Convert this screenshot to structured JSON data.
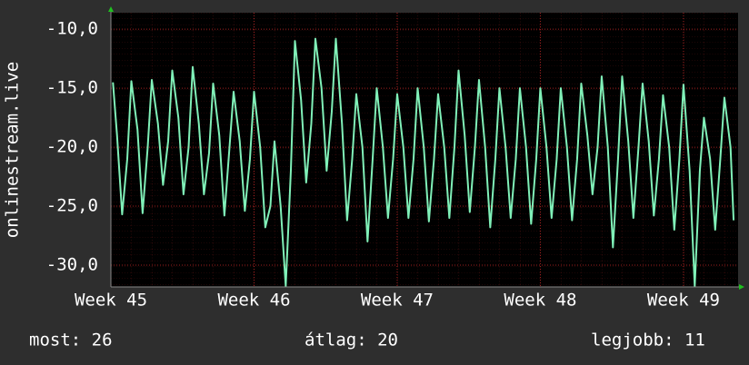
{
  "chart_data": {
    "type": "line",
    "ylabel": "onlinestream.live",
    "x": [
      0.1,
      0.3,
      0.55,
      0.8,
      1,
      1.3,
      1.55,
      1.8,
      2,
      2.3,
      2.55,
      2.8,
      3,
      3.3,
      3.55,
      3.8,
      4,
      4.3,
      4.55,
      4.8,
      5,
      5.3,
      5.55,
      5.8,
      6,
      6.3,
      6.55,
      6.8,
      7,
      7.3,
      7.55,
      7.8,
      8,
      8.3,
      8.55,
      8.8,
      9,
      9.3,
      9.55,
      9.8,
      10,
      10.3,
      10.55,
      10.8,
      11,
      11.3,
      11.55,
      11.8,
      12,
      12.3,
      12.55,
      12.8,
      13,
      13.3,
      13.55,
      13.8,
      14,
      14.3,
      14.55,
      14.8,
      15,
      15.3,
      15.55,
      15.8,
      16,
      16.3,
      16.55,
      16.8,
      17,
      17.3,
      17.55,
      17.8,
      18,
      18.3,
      18.55,
      18.8,
      19,
      19.3,
      19.55,
      19.8,
      20,
      20.3,
      20.55,
      20.8,
      21,
      21.3,
      21.55,
      21.8,
      22,
      22.3,
      22.55,
      22.8,
      23,
      23.3,
      23.55,
      23.8,
      24,
      24.3,
      24.55,
      24.8,
      25,
      25.3,
      25.55,
      25.8,
      26,
      26.3,
      26.55,
      26.8,
      27,
      27.3,
      27.55,
      27.8,
      28,
      28.3,
      28.55,
      28.8,
      29,
      29.3,
      29.55,
      29.8,
      30,
      30.3,
      30.45
    ],
    "series": [
      {
        "color": "#80f0b8",
        "values": [
          -14.5,
          -19,
          -25.7,
          -21,
          -14.4,
          -18.5,
          -25.6,
          -20,
          -14.3,
          -18,
          -23.2,
          -19.5,
          -13.5,
          -17.5,
          -24,
          -20,
          -13.2,
          -18,
          -24,
          -20.5,
          -14.6,
          -19,
          -25.8,
          -20,
          -15.3,
          -19.5,
          -25.4,
          -21,
          -15.3,
          -20,
          -26.8,
          -25,
          -19.5,
          -25,
          -31.8,
          -22,
          -11,
          -16,
          -23,
          -18,
          -10.8,
          -15,
          -22,
          -17,
          -10.8,
          -18,
          -26.2,
          -21,
          -15.5,
          -20,
          -28,
          -21,
          -15,
          -20,
          -26,
          -21,
          -15.5,
          -20,
          -26,
          -21,
          -15,
          -20,
          -26.3,
          -21,
          -15.5,
          -20,
          -26,
          -20,
          -13.5,
          -19,
          -25.5,
          -20,
          -14.3,
          -20,
          -26.8,
          -21,
          -15,
          -20,
          -26,
          -21,
          -15,
          -20,
          -26.5,
          -21,
          -15,
          -20,
          -26,
          -21,
          -15,
          -20,
          -26.2,
          -21,
          -14.6,
          -19,
          -24,
          -20,
          -14,
          -20,
          -28.5,
          -21,
          -14,
          -19.5,
          -26,
          -20,
          -14.6,
          -19.5,
          -25.8,
          -21,
          -15.6,
          -20,
          -27,
          -21,
          -14.7,
          -22,
          -31.8,
          -22,
          -17.5,
          -21,
          -27,
          -21,
          -15.8,
          -20,
          -26.2
        ]
      }
    ],
    "xlim": [
      0,
      30.67
    ],
    "xticks": [
      {
        "value": 0,
        "label": "Week 45"
      },
      {
        "value": 7,
        "label": "Week 46"
      },
      {
        "value": 14,
        "label": "Week 47"
      },
      {
        "value": 21,
        "label": "Week 48"
      },
      {
        "value": 28,
        "label": "Week 49"
      }
    ],
    "ylim": [
      -31.85,
      -8.6
    ],
    "yticks": [
      {
        "value": -30,
        "label": "-30,0"
      },
      {
        "value": -25,
        "label": "-25,0"
      },
      {
        "value": -20,
        "label": "-20,0"
      },
      {
        "value": -15,
        "label": "-15,0"
      },
      {
        "value": -10,
        "label": "-10,0"
      }
    ],
    "grid": true,
    "footer": {
      "current": "most: 26",
      "average": "átlag: 20",
      "best": "legjobb: 11"
    }
  }
}
